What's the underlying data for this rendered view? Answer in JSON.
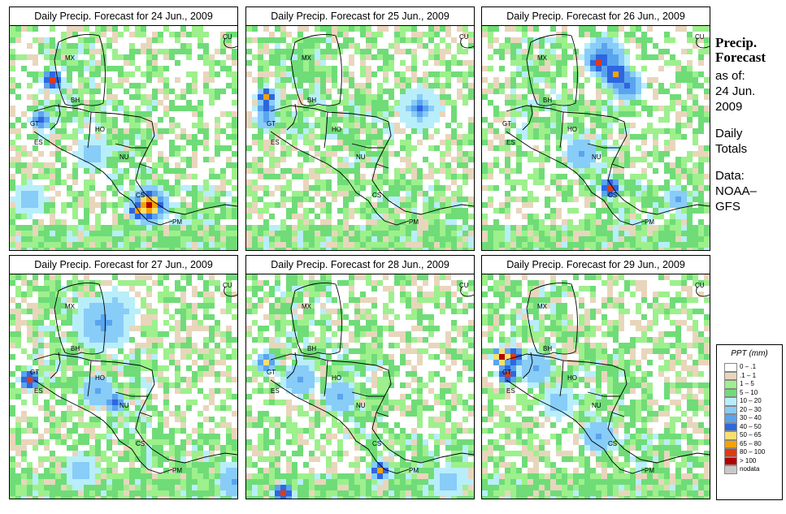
{
  "panels": [
    {
      "title": "Daily Precip. Forecast for  24 Jun., 2009"
    },
    {
      "title": "Daily Precip. Forecast for  25 Jun., 2009"
    },
    {
      "title": "Daily Precip. Forecast for  26 Jun., 2009"
    },
    {
      "title": "Daily Precip. Forecast for  27 Jun., 2009"
    },
    {
      "title": "Daily Precip. Forecast for  28 Jun., 2009"
    },
    {
      "title": "Daily Precip. Forecast for  29 Jun., 2009"
    }
  ],
  "country_labels": {
    "cu": "CU",
    "mx": "MX",
    "bh": "BH",
    "gt": "GT",
    "ho": "HO",
    "es": "ES",
    "nu": "NU",
    "cs": "CS",
    "pm": "PM"
  },
  "side": {
    "title_line1": "Precip.",
    "title_line2": "Forecast",
    "as_of": "as of:",
    "date_line1": "24 Jun.",
    "date_line2": "2009",
    "totals_line1": "Daily",
    "totals_line2": "Totals",
    "data_line1": "Data:",
    "data_line2": "NOAA–",
    "data_line3": "GFS"
  },
  "legend": {
    "title": "PPT (mm)",
    "items": [
      {
        "label": "0 – .1",
        "color": "#ffffff"
      },
      {
        "label": ".1 – 1",
        "color": "#e8d6bc"
      },
      {
        "label": "1 – 5",
        "color": "#9df08c"
      },
      {
        "label": "5 – 10",
        "color": "#6fdc78"
      },
      {
        "label": "10 – 20",
        "color": "#b8eefa"
      },
      {
        "label": "20 – 30",
        "color": "#88ccf8"
      },
      {
        "label": "30 – 40",
        "color": "#5aa4ee"
      },
      {
        "label": "40 – 50",
        "color": "#2e66e0"
      },
      {
        "label": "50 – 65",
        "color": "#f8e06c"
      },
      {
        "label": "65 – 80",
        "color": "#f6a200"
      },
      {
        "label": "80 – 100",
        "color": "#e23a10"
      },
      {
        "label": "> 100",
        "color": "#b00000"
      },
      {
        "label": "nodata",
        "color": "#c8c8c8"
      }
    ]
  }
}
